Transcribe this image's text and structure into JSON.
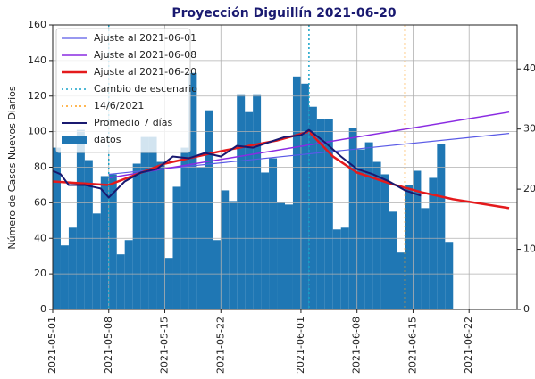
{
  "chart_data": {
    "type": "bar",
    "title": "Proyección Diguillín 2021-06-20",
    "y_label": "Número de Casos Nuevos Diarios",
    "xlim": [
      "2021-05-01",
      "2021-06-28"
    ],
    "xticks": [
      "2021-05-01",
      "2021-05-08",
      "2021-05-15",
      "2021-05-22",
      "2021-06-01",
      "2021-06-08",
      "2021-06-15",
      "2021-06-22"
    ],
    "ylim": [
      0,
      160
    ],
    "yticks": [
      0,
      20,
      40,
      60,
      80,
      100,
      120,
      140,
      160
    ],
    "y2lim": [
      0,
      47.3
    ],
    "y2ticks": [
      0,
      10,
      20,
      30,
      40
    ],
    "grid": true,
    "legend": "upper left",
    "series": [
      {
        "name": "Ajuste al 2021-06-01",
        "kind": "line",
        "color": "#5a5ae6",
        "width": 1.2,
        "x": [
          "2021-05-08",
          "2021-06-27"
        ],
        "values": [
          76,
          99
        ]
      },
      {
        "name": "Ajuste al 2021-06-08",
        "kind": "line",
        "color": "#8a2be2",
        "width": 1.5,
        "x": [
          "2021-05-08",
          "2021-06-27"
        ],
        "values": [
          74,
          111
        ]
      },
      {
        "name": "Ajuste al 2021-06-20",
        "kind": "line",
        "color": "#e41a1c",
        "width": 2.5,
        "x": [
          "2021-05-01",
          "2021-05-08",
          "2021-05-15",
          "2021-05-22",
          "2021-05-29",
          "2021-06-02",
          "2021-06-05",
          "2021-06-08",
          "2021-06-12",
          "2021-06-16",
          "2021-06-20",
          "2021-06-27"
        ],
        "values": [
          72,
          70,
          82,
          89,
          95,
          100,
          86,
          77,
          71,
          66,
          62,
          57
        ]
      },
      {
        "name": "Cambio de escenario",
        "kind": "vline",
        "color": "#17a2c8",
        "x": [
          "2021-05-08",
          "2021-06-02"
        ]
      },
      {
        "name": "14/6/2021",
        "kind": "vline",
        "color": "#ff9f1c",
        "x": [
          "2021-06-14"
        ]
      },
      {
        "name": "Promedio 7 días",
        "kind": "line",
        "color": "#191970",
        "width": 2,
        "x": [
          "2021-05-01",
          "2021-05-02",
          "2021-05-03",
          "2021-05-05",
          "2021-05-07",
          "2021-05-08",
          "2021-05-10",
          "2021-05-12",
          "2021-05-14",
          "2021-05-16",
          "2021-05-18",
          "2021-05-20",
          "2021-05-22",
          "2021-05-24",
          "2021-05-26",
          "2021-05-28",
          "2021-05-30",
          "2021-06-01",
          "2021-06-02",
          "2021-06-04",
          "2021-06-06",
          "2021-06-08",
          "2021-06-10",
          "2021-06-12",
          "2021-06-14",
          "2021-06-16"
        ],
        "values": [
          78,
          76,
          70,
          70,
          68,
          63,
          72,
          77,
          79,
          86,
          85,
          88,
          86,
          92,
          91,
          94,
          97,
          98,
          101,
          94,
          86,
          79,
          76,
          72,
          67,
          64
        ]
      },
      {
        "name": "datos",
        "kind": "bar",
        "color": "#1f77b4",
        "x": [
          "2021-05-01",
          "2021-05-02",
          "2021-05-03",
          "2021-05-04",
          "2021-05-05",
          "2021-05-06",
          "2021-05-07",
          "2021-05-08",
          "2021-05-09",
          "2021-05-10",
          "2021-05-11",
          "2021-05-12",
          "2021-05-13",
          "2021-05-14",
          "2021-05-15",
          "2021-05-16",
          "2021-05-17",
          "2021-05-18",
          "2021-05-19",
          "2021-05-20",
          "2021-05-21",
          "2021-05-22",
          "2021-05-23",
          "2021-05-24",
          "2021-05-25",
          "2021-05-26",
          "2021-05-27",
          "2021-05-28",
          "2021-05-29",
          "2021-05-30",
          "2021-05-31",
          "2021-06-01",
          "2021-06-02",
          "2021-06-03",
          "2021-06-04",
          "2021-06-05",
          "2021-06-06",
          "2021-06-07",
          "2021-06-08",
          "2021-06-09",
          "2021-06-10",
          "2021-06-11",
          "2021-06-12",
          "2021-06-13",
          "2021-06-14",
          "2021-06-15",
          "2021-06-16",
          "2021-06-17",
          "2021-06-18",
          "2021-06-19"
        ],
        "values": [
          91,
          36,
          46,
          101,
          84,
          54,
          75,
          76,
          31,
          39,
          82,
          97,
          97,
          83,
          29,
          69,
          91,
          133,
          80,
          112,
          39,
          67,
          61,
          121,
          111,
          121,
          77,
          85,
          60,
          59,
          131,
          127,
          114,
          107,
          107,
          45,
          46,
          102,
          90,
          94,
          83,
          76,
          55,
          32,
          70,
          78,
          57,
          74,
          93,
          38
        ]
      }
    ]
  }
}
